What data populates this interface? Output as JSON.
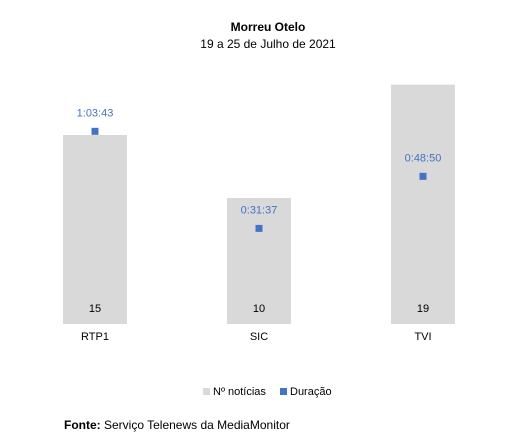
{
  "chart_data": {
    "type": "bar",
    "title": "Morreu Otelo",
    "subtitle": "19 a 25 de Julho de 2021",
    "categories": [
      "RTP1",
      "SIC",
      "TVI"
    ],
    "series": [
      {
        "name": "Nº notícias",
        "kind": "bar",
        "values": [
          15,
          10,
          19
        ],
        "color": "#d9d9d9"
      },
      {
        "name": "Duração",
        "kind": "marker",
        "values": [
          "1:03:43",
          "0:31:37",
          "0:48:50"
        ],
        "color": "#4472c4"
      }
    ],
    "legend_position": "bottom",
    "grid": false
  },
  "source": {
    "label": "Fonte:",
    "text": " Serviço Telenews da MediaMonitor"
  }
}
